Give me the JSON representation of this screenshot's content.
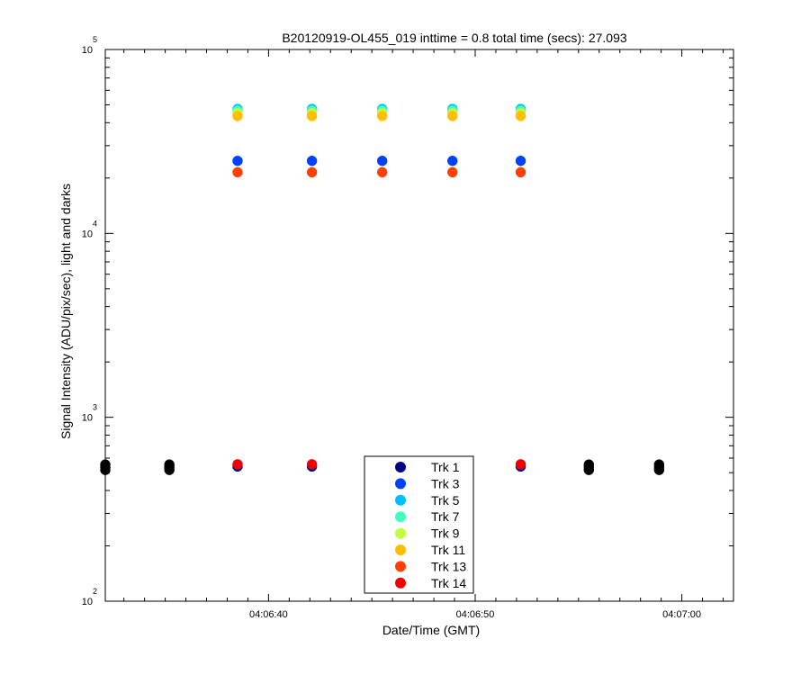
{
  "chart_data": {
    "type": "scatter",
    "title": "B20120919-OL455_019 inttime = 0.8 total time (secs): 27.093",
    "xlabel": "Date/Time (GMT)",
    "ylabel": "Signal Intensity (ADU/pix/sec), light and darks",
    "x_ticks": [
      {
        "label": "04:06:40",
        "sec": 40
      },
      {
        "label": "04:06:50",
        "sec": 50
      },
      {
        "label": "04:07:00",
        "sec": 60
      }
    ],
    "y_ticks": [
      {
        "base": "10",
        "exp": "2",
        "value": 100
      },
      {
        "base": "10",
        "exp": "3",
        "value": 1000
      },
      {
        "base": "10",
        "exp": "4",
        "value": 10000
      },
      {
        "base": "10",
        "exp": "5",
        "value": 100000
      }
    ],
    "xlim_sec": [
      32.1,
      62.5
    ],
    "ylim": [
      100,
      100000
    ],
    "yscale": "log",
    "grid": false,
    "legend_position": "bottom-center",
    "series": [
      {
        "name": "Trk 1",
        "color": "#00008f",
        "x_sec": [
          38.5,
          42.1,
          52.2
        ],
        "values": [
          540,
          540,
          540
        ]
      },
      {
        "name": "Trk 3",
        "color": "#0040ff",
        "x_sec": [
          38.5,
          42.1,
          45.5,
          48.9,
          52.2
        ],
        "values": [
          24800,
          24800,
          24800,
          24800,
          24800
        ]
      },
      {
        "name": "Trk 5",
        "color": "#00bfff",
        "x_sec": [
          38.5,
          42.1,
          45.5,
          48.9,
          52.2
        ],
        "values": [
          47500,
          47500,
          47500,
          47500,
          47500
        ]
      },
      {
        "name": "Trk 7",
        "color": "#40ffbf",
        "x_sec": [
          38.5,
          42.1,
          45.5,
          48.9,
          52.2
        ],
        "values": [
          46500,
          46500,
          46500,
          46500,
          46500
        ]
      },
      {
        "name": "Trk 9",
        "color": "#bfff40",
        "x_sec": [
          38.5,
          42.1,
          45.5,
          48.9,
          52.2
        ],
        "values": [
          45000,
          45000,
          45000,
          45000,
          45000
        ]
      },
      {
        "name": "Trk 11",
        "color": "#ffbf00",
        "x_sec": [
          38.5,
          42.1,
          45.5,
          48.9,
          52.2
        ],
        "values": [
          43500,
          43500,
          43500,
          43500,
          43500
        ]
      },
      {
        "name": "Trk 13",
        "color": "#ff4000",
        "x_sec": [
          38.5,
          42.1,
          45.5,
          48.9,
          52.2
        ],
        "values": [
          21500,
          21500,
          21500,
          21500,
          21500
        ]
      },
      {
        "name": "Trk 14",
        "color": "#ef0000",
        "x_sec": [
          38.5,
          42.1,
          52.2
        ],
        "values": [
          555,
          555,
          555
        ]
      }
    ],
    "darks": {
      "color": "#000000",
      "x_sec": [
        32.1,
        35.2,
        55.5,
        58.9
      ],
      "values": [
        535,
        535,
        535,
        535
      ]
    }
  }
}
